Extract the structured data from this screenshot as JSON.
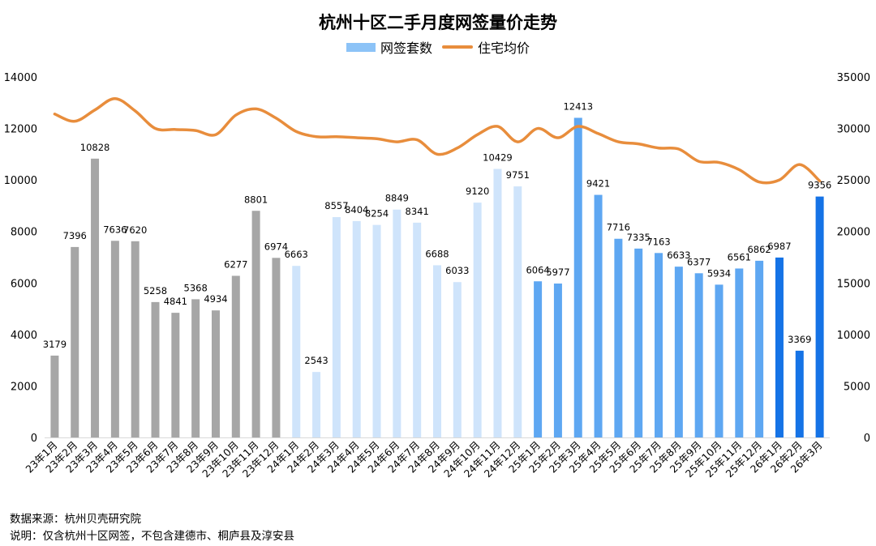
{
  "chart_data": {
    "type": "bar+line",
    "title": "杭州十区二手月度网签量价走势",
    "categories": [
      "23年1月",
      "23年2月",
      "23年3月",
      "23年4月",
      "23年5月",
      "23年6月",
      "23年7月",
      "23年8月",
      "23年9月",
      "23年10月",
      "23年11月",
      "23年12月",
      "24年1月",
      "24年2月",
      "24年3月",
      "24年4月",
      "24年5月",
      "24年6月",
      "24年7月",
      "24年8月",
      "24年9月",
      "24年10月",
      "24年11月",
      "24年12月",
      "25年1月",
      "25年2月",
      "25年3月",
      "25年4月",
      "25年5月",
      "25年6月",
      "25年7月",
      "25年8月",
      "25年9月",
      "25年10月",
      "25年11月",
      "25年12月",
      "26年1月",
      "26年2月",
      "26年3月"
    ],
    "series": [
      {
        "name": "网签套数",
        "axis": "left",
        "type": "bar",
        "values": [
          3179,
          7396,
          10828,
          7636,
          7620,
          5258,
          4841,
          5368,
          4934,
          6277,
          8801,
          6974,
          6663,
          2543,
          8557,
          8404,
          8254,
          8849,
          8341,
          6688,
          6033,
          9120,
          10429,
          9751,
          6064,
          5977,
          12413,
          9421,
          7716,
          7335,
          7163,
          6633,
          6377,
          5934,
          6561,
          6862,
          6987,
          3369,
          9356
        ]
      },
      {
        "name": "住宅均价",
        "axis": "right",
        "type": "line",
        "values": [
          31400,
          30700,
          31800,
          32900,
          31700,
          30000,
          29900,
          29800,
          29400,
          31300,
          31900,
          31000,
          29700,
          29200,
          29200,
          29100,
          29000,
          28700,
          28900,
          27500,
          28100,
          29400,
          30200,
          28700,
          30000,
          29100,
          30200,
          29500,
          28700,
          28500,
          28100,
          28000,
          26800,
          26700,
          26000,
          24800,
          25000,
          26500,
          24900
        ]
      }
    ],
    "bar_colors": [
      "#a6a6a6",
      "#a6a6a6",
      "#a6a6a6",
      "#a6a6a6",
      "#a6a6a6",
      "#a6a6a6",
      "#a6a6a6",
      "#a6a6a6",
      "#a6a6a6",
      "#a6a6a6",
      "#a6a6a6",
      "#a6a6a6",
      "#cfe4fb",
      "#cfe4fb",
      "#cfe4fb",
      "#cfe4fb",
      "#cfe4fb",
      "#cfe4fb",
      "#cfe4fb",
      "#cfe4fb",
      "#cfe4fb",
      "#cfe4fb",
      "#cfe4fb",
      "#cfe4fb",
      "#5ea7f2",
      "#5ea7f2",
      "#5ea7f2",
      "#5ea7f2",
      "#5ea7f2",
      "#5ea7f2",
      "#5ea7f2",
      "#5ea7f2",
      "#5ea7f2",
      "#5ea7f2",
      "#5ea7f2",
      "#5ea7f2",
      "#1573e6",
      "#1573e6",
      "#1573e6"
    ],
    "line_color": "#e88d3c",
    "legend_bar_color": "#8cc3f7",
    "ylim_left": [
      0,
      14000
    ],
    "yticks_left": [
      0,
      2000,
      4000,
      6000,
      8000,
      10000,
      12000,
      14000
    ],
    "ylim_right": [
      0,
      35000
    ],
    "yticks_right": [
      0,
      5000,
      10000,
      15000,
      20000,
      25000,
      30000,
      35000
    ],
    "grid": false,
    "legend_position": "top-center"
  },
  "notes": {
    "source": "数据来源：杭州贝壳研究院",
    "explanation": "说明：仅含杭州十区网签，不包含建德市、桐庐县及淳安县"
  }
}
